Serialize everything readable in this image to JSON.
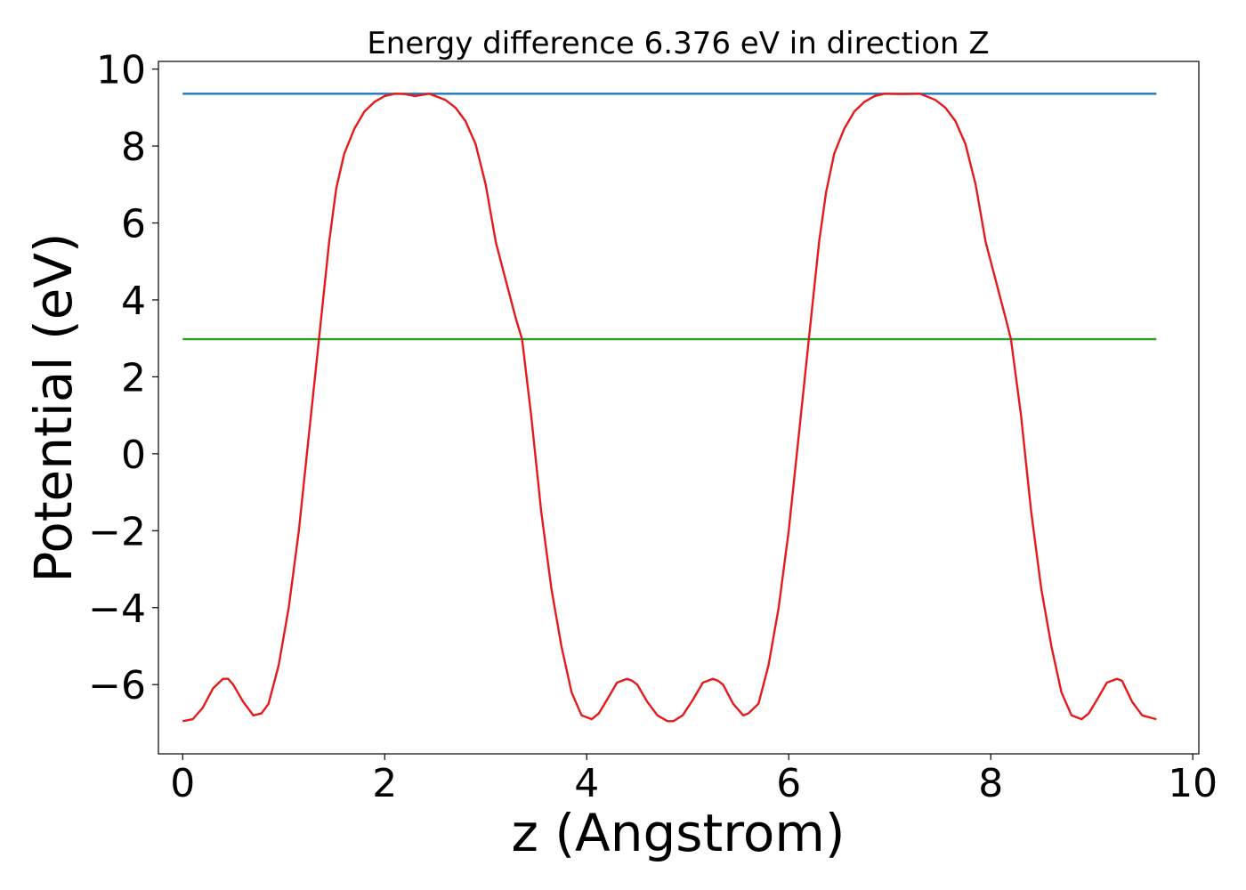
{
  "chart_data": {
    "type": "line",
    "title": "Energy difference 6.376 eV in direction Z",
    "xlabel": "z (Angstrom)",
    "ylabel": "Potential (eV)",
    "xlim": [
      -0.24,
      10.06
    ],
    "ylim": [
      -7.8,
      10.2
    ],
    "xticks": [
      0,
      2,
      4,
      6,
      8,
      10
    ],
    "xtick_labels": [
      "0",
      "2",
      "4",
      "6",
      "8",
      "10"
    ],
    "yticks": [
      -6,
      -4,
      -2,
      0,
      2,
      4,
      6,
      8,
      10
    ],
    "ytick_labels": [
      "−6",
      "−4",
      "−2",
      "0",
      "2",
      "4",
      "6",
      "8",
      "10"
    ],
    "grid": false,
    "series": [
      {
        "color": "#1f77b4",
        "x": [
          0,
          9.64
        ],
        "y": [
          9.36,
          9.36
        ]
      },
      {
        "color": "#2ca02c",
        "x": [
          0,
          9.64
        ],
        "y": [
          2.98,
          2.98
        ]
      },
      {
        "color": "#e41a1c",
        "x": [
          0.0,
          0.1,
          0.2,
          0.3,
          0.4,
          0.45,
          0.5,
          0.6,
          0.7,
          0.78,
          0.85,
          0.95,
          1.05,
          1.15,
          1.25,
          1.35,
          1.45,
          1.52,
          1.6,
          1.7,
          1.8,
          1.9,
          2.0,
          2.1,
          2.2,
          2.3,
          2.44,
          2.6,
          2.7,
          2.8,
          2.9,
          3.0,
          3.1,
          3.2,
          3.3,
          3.36,
          3.45,
          3.55,
          3.65,
          3.75,
          3.85,
          3.95,
          4.05,
          4.12,
          4.2,
          4.3,
          4.4,
          4.45,
          4.5,
          4.6,
          4.7,
          4.8,
          4.86,
          4.95,
          5.05,
          5.15,
          5.25,
          5.3,
          5.35,
          5.45,
          5.55,
          5.6,
          5.7,
          5.8,
          5.9,
          6.0,
          6.1,
          6.2,
          6.3,
          6.37,
          6.45,
          6.55,
          6.65,
          6.75,
          6.85,
          6.95,
          7.1,
          7.3,
          7.45,
          7.55,
          7.65,
          7.75,
          7.85,
          7.95,
          8.05,
          8.15,
          8.2,
          8.3,
          8.4,
          8.5,
          8.6,
          8.7,
          8.8,
          8.9,
          8.97,
          9.05,
          9.15,
          9.25,
          9.3,
          9.4,
          9.5,
          9.64
        ],
        "y": [
          -6.95,
          -6.9,
          -6.6,
          -6.1,
          -5.85,
          -5.85,
          -6.0,
          -6.45,
          -6.8,
          -6.75,
          -6.5,
          -5.5,
          -4.0,
          -2.0,
          0.5,
          3.0,
          5.5,
          6.9,
          7.8,
          8.45,
          8.9,
          9.15,
          9.3,
          9.36,
          9.35,
          9.3,
          9.36,
          9.2,
          9.0,
          8.65,
          8.05,
          7.0,
          5.5,
          4.5,
          3.5,
          2.98,
          1.0,
          -1.5,
          -3.5,
          -5.0,
          -6.2,
          -6.8,
          -6.9,
          -6.75,
          -6.4,
          -5.95,
          -5.85,
          -5.9,
          -6.0,
          -6.45,
          -6.8,
          -6.95,
          -6.95,
          -6.8,
          -6.4,
          -5.95,
          -5.85,
          -5.9,
          -6.0,
          -6.5,
          -6.8,
          -6.75,
          -6.5,
          -5.5,
          -4.0,
          -2.0,
          0.5,
          3.0,
          5.5,
          6.8,
          7.8,
          8.45,
          8.9,
          9.15,
          9.3,
          9.36,
          9.35,
          9.36,
          9.2,
          9.0,
          8.65,
          8.05,
          7.0,
          5.5,
          4.5,
          3.5,
          2.98,
          1.0,
          -1.5,
          -3.5,
          -5.0,
          -6.2,
          -6.8,
          -6.9,
          -6.75,
          -6.4,
          -5.95,
          -5.85,
          -5.9,
          -6.45,
          -6.8,
          -6.9
        ]
      }
    ]
  }
}
